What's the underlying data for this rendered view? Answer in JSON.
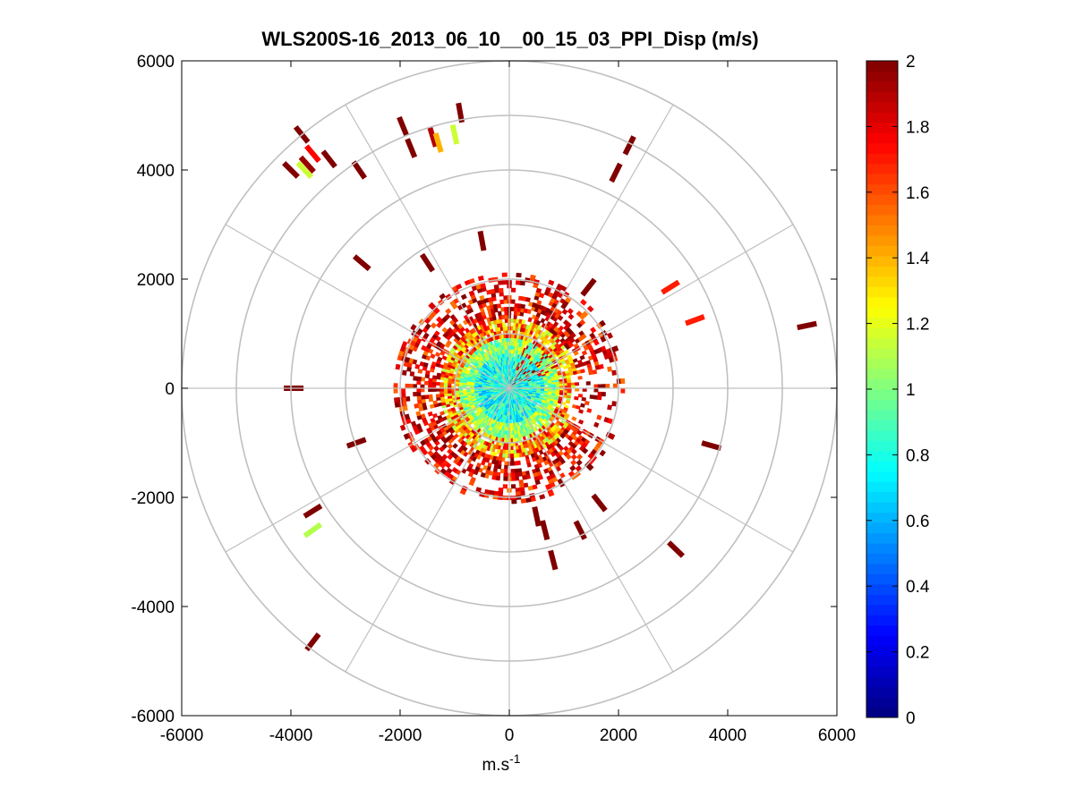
{
  "chart_data": {
    "type": "polar-ppi-scatter",
    "title": "WLS200S-16_2013_06_10__00_15_03_PPI_Disp (m/s)",
    "xlabel": "m.s",
    "xlabel_superscript": "-1",
    "ylabel": "",
    "xlim": [
      -6000,
      6000
    ],
    "ylim": [
      -6000,
      6000
    ],
    "x_ticks": [
      "-6000",
      "-4000",
      "-2000",
      "0",
      "2000",
      "4000",
      "6000"
    ],
    "x_tick_values": [
      -6000,
      -4000,
      -2000,
      0,
      2000,
      4000,
      6000
    ],
    "y_ticks": [
      "6000",
      "4000",
      "2000",
      "0",
      "-2000",
      "-4000",
      "-6000"
    ],
    "y_tick_values": [
      6000,
      4000,
      2000,
      0,
      -2000,
      -4000,
      -6000
    ],
    "range_rings": [
      1000,
      2000,
      3000,
      4000,
      5000,
      6000
    ],
    "radial_spokes_deg": [
      0,
      30,
      60,
      90,
      120,
      150,
      180,
      210,
      240,
      270,
      300,
      330
    ],
    "colorbar": {
      "min": 0,
      "max": 2,
      "tick_values": [
        0,
        0.2,
        0.4,
        0.6,
        0.8,
        1,
        1.2,
        1.4,
        1.6,
        1.8,
        2
      ],
      "tick_labels": [
        "0",
        "0.2",
        "0.4",
        "0.6",
        "0.8",
        "1",
        "1.2",
        "1.4",
        "1.6",
        "1.8",
        "2"
      ],
      "colormap": "jet"
    },
    "near_field_max_range": 2100,
    "sparse_gates": [
      {
        "x": -4000,
        "y": 4000,
        "v": 2.0
      },
      {
        "x": -3700,
        "y": 4100,
        "v": 1.95
      },
      {
        "x": -3600,
        "y": 4300,
        "v": 1.75
      },
      {
        "x": -3750,
        "y": 4000,
        "v": 1.15
      },
      {
        "x": -3800,
        "y": 4650,
        "v": 2.0
      },
      {
        "x": -3300,
        "y": 4200,
        "v": 2.0
      },
      {
        "x": -2750,
        "y": 4000,
        "v": 2.0
      },
      {
        "x": -1950,
        "y": 4800,
        "v": 2.0
      },
      {
        "x": -1800,
        "y": 4400,
        "v": 2.0
      },
      {
        "x": -1400,
        "y": 4600,
        "v": 1.9
      },
      {
        "x": -1300,
        "y": 4500,
        "v": 1.4
      },
      {
        "x": -1000,
        "y": 4650,
        "v": 1.15
      },
      {
        "x": -900,
        "y": 5050,
        "v": 2.0
      },
      {
        "x": 2200,
        "y": 4450,
        "v": 2.0
      },
      {
        "x": 1950,
        "y": 3950,
        "v": 2.0
      },
      {
        "x": -500,
        "y": 2700,
        "v": 2.0
      },
      {
        "x": -1500,
        "y": 2300,
        "v": 2.0
      },
      {
        "x": -2700,
        "y": 2300,
        "v": 2.0
      },
      {
        "x": 1450,
        "y": 1850,
        "v": 2.0
      },
      {
        "x": 2950,
        "y": 1850,
        "v": 1.7
      },
      {
        "x": 3400,
        "y": 1250,
        "v": 1.7
      },
      {
        "x": 5450,
        "y": 1150,
        "v": 2.0
      },
      {
        "x": -3950,
        "y": 0,
        "v": 2.0
      },
      {
        "x": -2800,
        "y": -1000,
        "v": 2.0
      },
      {
        "x": 3700,
        "y": -1050,
        "v": 2.0
      },
      {
        "x": 1650,
        "y": -2100,
        "v": 2.0
      },
      {
        "x": 1300,
        "y": -2600,
        "v": 2.0
      },
      {
        "x": 500,
        "y": -2350,
        "v": 2.0
      },
      {
        "x": 650,
        "y": -2600,
        "v": 2.0
      },
      {
        "x": 800,
        "y": -3150,
        "v": 2.0
      },
      {
        "x": 3050,
        "y": -2950,
        "v": 2.0
      },
      {
        "x": -3600,
        "y": -2250,
        "v": 2.0
      },
      {
        "x": -3600,
        "y": -2600,
        "v": 1.1
      },
      {
        "x": -3600,
        "y": -4650,
        "v": 2.0
      }
    ]
  }
}
